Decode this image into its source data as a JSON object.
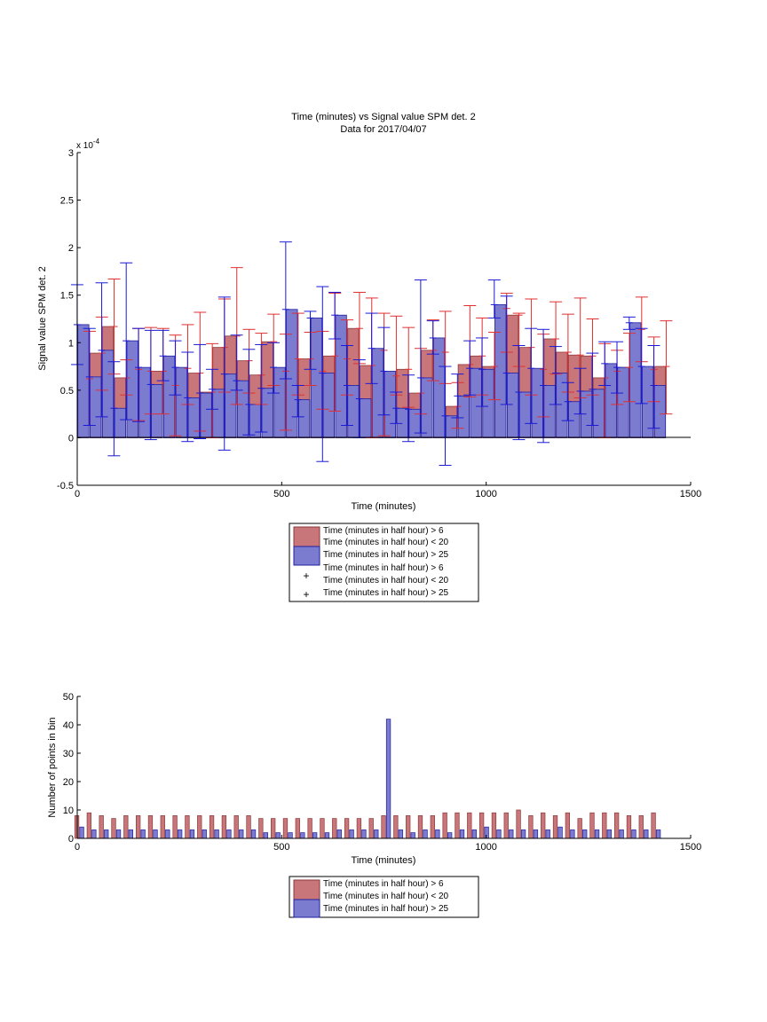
{
  "colors": {
    "red_fill": "#c8767a",
    "red_edge": "#8a3a3a",
    "blue_fill": "#7b7bd0",
    "blue_edge": "#2020a0",
    "red_err": "#e03030",
    "blue_err": "#1a1ad8",
    "axis": "#000000"
  },
  "chart_data": [
    {
      "type": "bar",
      "title": "Time (minutes) vs Signal value SPM det. 2",
      "subtitle": "Data for 2017/04/07",
      "xlabel": "Time (minutes)",
      "ylabel": "Signal value SPM det. 2",
      "y_exponent_label": "x 10",
      "y_exponent_power": "-4",
      "xlim": [
        0,
        1500
      ],
      "ylim": [
        -0.5,
        3
      ],
      "xticks": [
        0,
        500,
        1000,
        1500
      ],
      "yticks": [
        -0.5,
        0,
        0.5,
        1,
        1.5,
        2,
        2.5,
        3
      ],
      "grid": false,
      "legend_position": "below",
      "legend": [
        "Time (minutes in half hour) > 6",
        "Time (minutes in half hour) < 20",
        "Time (minutes in half hour) > 25",
        "Time (minutes in half hour) > 6",
        "Time (minutes in half hour) < 20",
        "Time (minutes in half hour) > 25"
      ],
      "x": [
        15,
        45,
        75,
        105,
        135,
        165,
        195,
        225,
        255,
        285,
        315,
        345,
        375,
        405,
        435,
        465,
        495,
        525,
        555,
        585,
        615,
        645,
        675,
        705,
        735,
        765,
        795,
        825,
        855,
        885,
        915,
        945,
        975,
        1005,
        1035,
        1065,
        1095,
        1125,
        1155,
        1185,
        1215,
        1245,
        1275,
        1305,
        1335,
        1365,
        1395,
        1425
      ],
      "series": [
        {
          "values": [
            0.62,
            0.89,
            1.17,
            0.63,
            0.72,
            0.7,
            0.7,
            0.55,
            0.73,
            0.68,
            0.48,
            0.95,
            1.07,
            0.81,
            0.66,
            1.01,
            0.7,
            0.83,
            0.83,
            0.7,
            0.86,
            0.83,
            1.15,
            0.76,
            0.92,
            0.65,
            0.72,
            0.47,
            0.92,
            0.9,
            0.33,
            0.77,
            0.86,
            0.75,
            1.36,
            1.29,
            0.95,
            0.72,
            1.04,
            0.9,
            0.87,
            0.86,
            0.63,
            0.7,
            0.74,
            1.14,
            0.72,
            0.75
          ],
          "err_low": [
            0.13,
            0.5,
            0.67,
            0.45,
            0.18,
            0.25,
            0.25,
            0.02,
            0.35,
            0.07,
            0.0,
            0.48,
            0.35,
            0.47,
            0.35,
            0.55,
            0.08,
            0.45,
            0.55,
            0.3,
            0.28,
            0.45,
            0.78,
            0.0,
            0.02,
            0.45,
            0.32,
            0.25,
            0.6,
            0.57,
            0.1,
            0.43,
            0.45,
            0.4,
            0.9,
            0.75,
            0.45,
            0.22,
            0.67,
            0.48,
            0.42,
            0.45,
            0.0,
            0.35,
            0.38,
            0.8,
            0.38,
            0.25
          ],
          "err_high": [
            1.12,
            1.27,
            1.67,
            0.82,
            1.15,
            1.16,
            1.15,
            1.08,
            1.19,
            1.32,
            0.99,
            1.46,
            1.79,
            1.14,
            1.1,
            1.3,
            1.09,
            1.31,
            1.11,
            1.12,
            1.52,
            1.24,
            1.53,
            1.47,
            1.31,
            1.28,
            1.16,
            0.94,
            1.24,
            1.33,
            0.58,
            1.39,
            1.26,
            1.11,
            1.52,
            1.31,
            1.46,
            1.09,
            1.43,
            1.3,
            1.47,
            1.25,
            0.99,
            0.92,
            1.1,
            1.48,
            1.06,
            1.23
          ]
        },
        {
          "values": [
            1.19,
            0.64,
            0.92,
            0.31,
            1.02,
            0.74,
            0.56,
            0.86,
            0.74,
            0.42,
            0.47,
            0.51,
            0.67,
            0.6,
            0.35,
            0.52,
            0.74,
            1.35,
            0.4,
            1.26,
            0.68,
            1.29,
            0.55,
            0.41,
            0.94,
            0.7,
            0.31,
            0.3,
            0.63,
            1.05,
            0.23,
            0.44,
            0.73,
            0.72,
            1.4,
            0.68,
            0.48,
            0.73,
            0.55,
            0.68,
            0.38,
            0.49,
            0.51,
            0.78,
            0.74,
            1.21,
            0.75,
            0.55
          ],
          "err_low": [
            0.77,
            0.13,
            0.22,
            -0.19,
            0.19,
            0.17,
            -0.02,
            0.6,
            0.45,
            -0.04,
            -0.01,
            0.3,
            -0.13,
            0.5,
            0.03,
            0.06,
            0.47,
            0.62,
            0.22,
            0.72,
            -0.25,
            1.04,
            0.13,
            0.0,
            0.57,
            0.24,
            0.15,
            -0.04,
            0.05,
            0.88,
            -0.29,
            0.21,
            0.45,
            0.33,
            1.26,
            0.35,
            -0.02,
            0.15,
            -0.05,
            0.35,
            0.18,
            0.25,
            0.13,
            0.55,
            0.47,
            1.14,
            0.36,
            0.1
          ],
          "err_high": [
            1.61,
            1.15,
            1.63,
            0.8,
            1.84,
            1.15,
            1.13,
            1.13,
            1.02,
            0.9,
            0.98,
            0.72,
            1.48,
            1.08,
            0.93,
            0.98,
            1.0,
            2.06,
            0.55,
            1.33,
            1.59,
            1.53,
            0.97,
            0.82,
            1.31,
            1.16,
            0.48,
            0.66,
            1.66,
            1.23,
            0.75,
            0.67,
            1.02,
            1.05,
            1.66,
            1.49,
            0.97,
            1.15,
            1.14,
            0.96,
            0.58,
            0.73,
            0.89,
            1.01,
            1.01,
            1.27,
            1.15,
            0.97
          ]
        }
      ]
    },
    {
      "type": "bar",
      "title": "",
      "xlabel": "Time (minutes)",
      "ylabel": "Number of points in bin",
      "xlim": [
        0,
        1500
      ],
      "ylim": [
        0,
        50
      ],
      "xticks": [
        0,
        500,
        1000,
        1500
      ],
      "yticks": [
        0,
        10,
        20,
        30,
        40,
        50
      ],
      "grid": false,
      "legend_position": "below",
      "legend": [
        "Time (minutes in half hour) > 6",
        "Time (minutes in half hour) < 20",
        "Time (minutes in half hour) > 25"
      ],
      "x": [
        15,
        45,
        75,
        105,
        135,
        165,
        195,
        225,
        255,
        285,
        315,
        345,
        375,
        405,
        435,
        465,
        495,
        525,
        555,
        585,
        615,
        645,
        675,
        705,
        735,
        765,
        795,
        825,
        855,
        885,
        915,
        945,
        975,
        1005,
        1035,
        1065,
        1095,
        1125,
        1155,
        1185,
        1215,
        1245,
        1275,
        1305,
        1335,
        1365,
        1395,
        1425
      ],
      "series": [
        {
          "values": [
            8,
            9,
            8,
            7,
            8,
            8,
            8,
            8,
            8,
            8,
            8,
            8,
            8,
            8,
            8,
            7,
            7,
            7,
            7,
            7,
            7,
            7,
            7,
            7,
            7,
            8,
            8,
            8,
            8,
            8,
            9,
            9,
            9,
            9,
            9,
            9,
            10,
            8,
            9,
            8,
            9,
            7,
            9,
            9,
            9,
            8,
            8,
            9
          ]
        },
        {
          "values": [
            4,
            3,
            3,
            3,
            3,
            3,
            3,
            3,
            3,
            3,
            3,
            3,
            3,
            3,
            3,
            2,
            2,
            2,
            2,
            2,
            2,
            3,
            3,
            3,
            3,
            42,
            3,
            2,
            3,
            3,
            2,
            3,
            3,
            4,
            3,
            3,
            3,
            3,
            3,
            4,
            3,
            3,
            3,
            3,
            3,
            3,
            3,
            3
          ]
        }
      ]
    }
  ]
}
